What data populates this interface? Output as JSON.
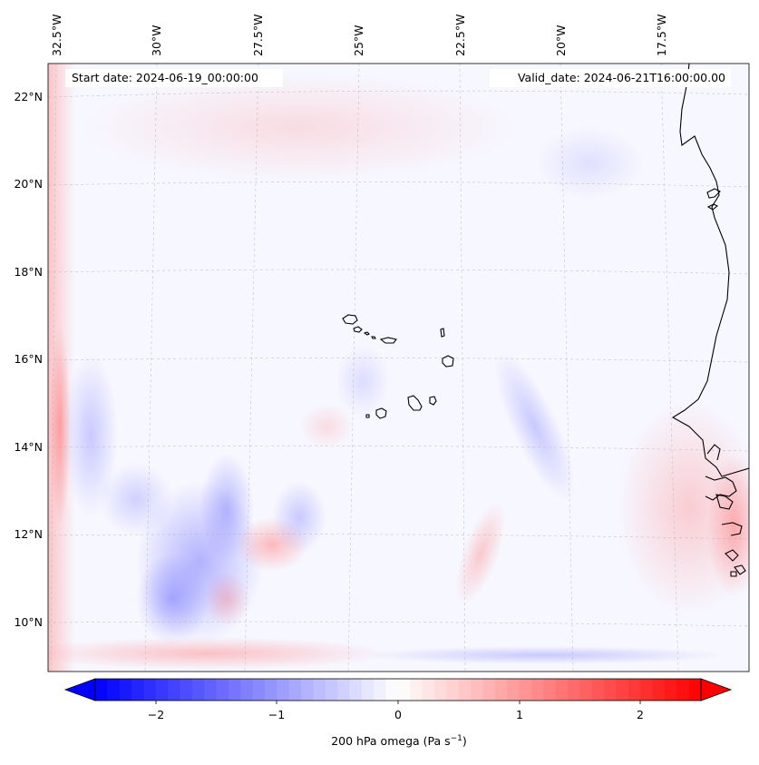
{
  "map": {
    "start_label": "Start date: 2024-06-19_00:00:00",
    "valid_label": "Valid_date: 2024-06-21T16:00:00.00",
    "lon_labels": [
      "32.5°W",
      "30°W",
      "27.5°W",
      "25°W",
      "22.5°W",
      "20°W",
      "17.5°W"
    ],
    "lat_labels": [
      "22°N",
      "20°N",
      "18°N",
      "16°N",
      "14°N",
      "12°N",
      "10°N"
    ],
    "field": "200 hPa omega",
    "colormap": "bwr",
    "colors": {
      "negative": "#0000ff",
      "zero": "#ffffff",
      "positive": "#ff0000",
      "coastline": "#000000",
      "gridline": "#b0b0b0"
    }
  },
  "colorbar": {
    "label_main": "200 hPa omega (Pa s",
    "label_sup": "−1",
    "label_end": ")",
    "ticks": [
      "−2",
      "−1",
      "0",
      "1",
      "2"
    ],
    "tick_values": [
      -2,
      -1,
      0,
      1,
      2
    ],
    "range": [
      -2.5,
      2.5
    ],
    "extend": "both"
  }
}
